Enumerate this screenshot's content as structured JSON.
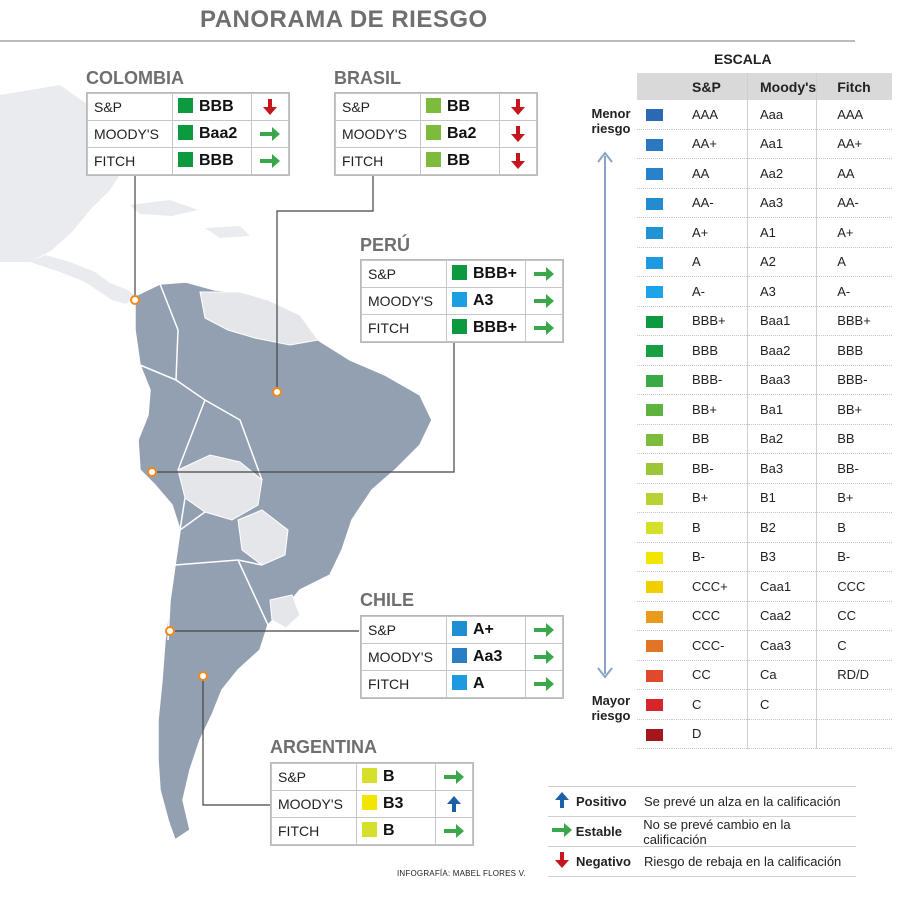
{
  "title": "PANORAMA DE RIESGO",
  "colors": {
    "positive": "#1f5fa8",
    "stable": "#3aa84a",
    "negative": "#c4161c"
  },
  "countries": [
    {
      "name": "COLOMBIA",
      "ratings": [
        {
          "agency": "S&P",
          "value": "BBB",
          "color": "#0d9a3f",
          "trend": "negative"
        },
        {
          "agency": "MOODY'S",
          "value": "Baa2",
          "color": "#0d9a3f",
          "trend": "stable"
        },
        {
          "agency": "FITCH",
          "value": "BBB",
          "color": "#0d9a3f",
          "trend": "stable"
        }
      ]
    },
    {
      "name": "BRASIL",
      "ratings": [
        {
          "agency": "S&P",
          "value": "BB",
          "color": "#7dbb3c",
          "trend": "negative"
        },
        {
          "agency": "MOODY'S",
          "value": "Ba2",
          "color": "#7dbb3c",
          "trend": "negative"
        },
        {
          "agency": "FITCH",
          "value": "BB",
          "color": "#7dbb3c",
          "trend": "negative"
        }
      ]
    },
    {
      "name": "PERÚ",
      "ratings": [
        {
          "agency": "S&P",
          "value": "BBB+",
          "color": "#0d9a3f",
          "trend": "stable"
        },
        {
          "agency": "MOODY'S",
          "value": "A3",
          "color": "#1d9ee3",
          "trend": "stable"
        },
        {
          "agency": "FITCH",
          "value": "BBB+",
          "color": "#0d9a3f",
          "trend": "stable"
        }
      ]
    },
    {
      "name": "CHILE",
      "ratings": [
        {
          "agency": "S&P",
          "value": "A+",
          "color": "#1e8fd2",
          "trend": "stable"
        },
        {
          "agency": "MOODY'S",
          "value": "Aa3",
          "color": "#2a7fc4",
          "trend": "stable"
        },
        {
          "agency": "FITCH",
          "value": "A",
          "color": "#1e9be0",
          "trend": "stable"
        }
      ]
    },
    {
      "name": "ARGENTINA",
      "ratings": [
        {
          "agency": "S&P",
          "value": "B",
          "color": "#d6e02a",
          "trend": "stable"
        },
        {
          "agency": "MOODY'S",
          "value": "B3",
          "color": "#f2e600",
          "trend": "positive"
        },
        {
          "agency": "FITCH",
          "value": "B",
          "color": "#d6e02a",
          "trend": "stable"
        }
      ]
    }
  ],
  "scale": {
    "title": "ESCALA",
    "headers": [
      "S&P",
      "Moody's",
      "Fitch"
    ],
    "low_risk_label": "Menor riesgo",
    "high_risk_label": "Mayor riesgo",
    "rows": [
      {
        "sp": "AAA",
        "moodys": "Aaa",
        "fitch": "AAA",
        "color": "#2d68b2"
      },
      {
        "sp": "AA+",
        "moodys": "Aa1",
        "fitch": "AA+",
        "color": "#2a78c2"
      },
      {
        "sp": "AA",
        "moodys": "Aa2",
        "fitch": "AA",
        "color": "#2683c9"
      },
      {
        "sp": "AA-",
        "moodys": "Aa3",
        "fitch": "AA-",
        "color": "#238bcf"
      },
      {
        "sp": "A+",
        "moodys": "A1",
        "fitch": "A+",
        "color": "#1f93d6"
      },
      {
        "sp": "A",
        "moodys": "A2",
        "fitch": "A",
        "color": "#1e9be0"
      },
      {
        "sp": "A-",
        "moodys": "A3",
        "fitch": "A-",
        "color": "#1da3e8"
      },
      {
        "sp": "BBB+",
        "moodys": "Baa1",
        "fitch": "BBB+",
        "color": "#0d9a3f"
      },
      {
        "sp": "BBB",
        "moodys": "Baa2",
        "fitch": "BBB",
        "color": "#16a043"
      },
      {
        "sp": "BBB-",
        "moodys": "Baa3",
        "fitch": "BBB-",
        "color": "#3aaa46"
      },
      {
        "sp": "BB+",
        "moodys": "Ba1",
        "fitch": "BB+",
        "color": "#5db240"
      },
      {
        "sp": "BB",
        "moodys": "Ba2",
        "fitch": "BB",
        "color": "#7dbb3c"
      },
      {
        "sp": "BB-",
        "moodys": "Ba3",
        "fitch": "BB-",
        "color": "#9cc638"
      },
      {
        "sp": "B+",
        "moodys": "B1",
        "fitch": "B+",
        "color": "#b9d233"
      },
      {
        "sp": "B",
        "moodys": "B2",
        "fitch": "B",
        "color": "#d6e02a"
      },
      {
        "sp": "B-",
        "moodys": "B3",
        "fitch": "B-",
        "color": "#f2e600"
      },
      {
        "sp": "CCC+",
        "moodys": "Caa1",
        "fitch": "CCC",
        "color": "#f0cf00"
      },
      {
        "sp": "CCC",
        "moodys": "Caa2",
        "fitch": "CC",
        "color": "#e89a1c"
      },
      {
        "sp": "CCC-",
        "moodys": "Caa3",
        "fitch": "C",
        "color": "#e27525"
      },
      {
        "sp": "CC",
        "moodys": "Ca",
        "fitch": "RD/D",
        "color": "#df4a2a"
      },
      {
        "sp": "C",
        "moodys": "C",
        "fitch": "",
        "color": "#d7262b"
      },
      {
        "sp": "D",
        "moodys": "",
        "fitch": "",
        "color": "#a4161b"
      }
    ]
  },
  "legend": [
    {
      "icon": "up-arrow-icon",
      "name": "Positivo",
      "desc": "Se prevé un alza en la calificación",
      "trend": "positive"
    },
    {
      "icon": "right-arrow-icon",
      "name": "Estable",
      "desc": "No se prevé cambio en la calificación",
      "trend": "stable"
    },
    {
      "icon": "down-arrow-icon",
      "name": "Negativo",
      "desc": "Riesgo de rebaja en la calificación",
      "trend": "negative"
    }
  ],
  "credit": "INFOGRAFÍA: MABEL FLORES V."
}
